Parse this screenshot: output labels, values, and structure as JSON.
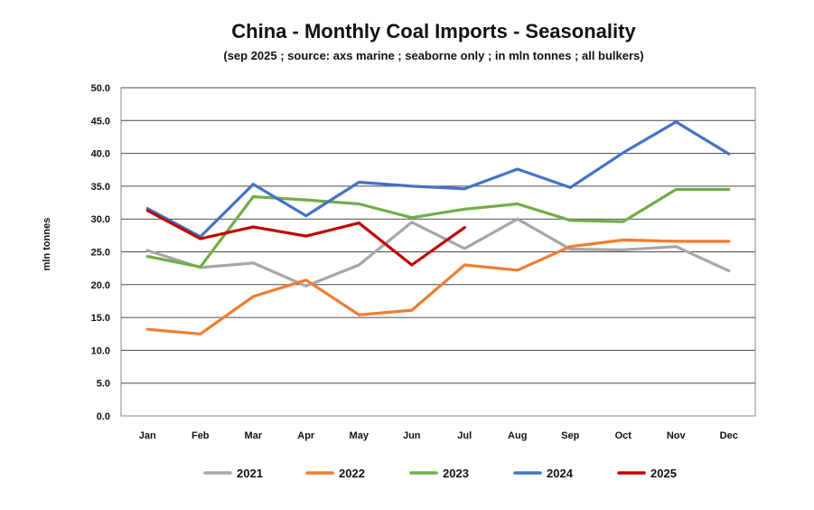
{
  "chart_data": {
    "type": "line",
    "title": "China - Monthly Coal Imports - Seasonality",
    "subtitle": "(sep 2025 ; source: axs marine ; seaborne only ; in mln tonnes ; all bulkers)",
    "xlabel": "",
    "ylabel": "mln tonnes",
    "categories": [
      "Jan",
      "Feb",
      "Mar",
      "Apr",
      "May",
      "Jun",
      "Jul",
      "Aug",
      "Sep",
      "Oct",
      "Nov",
      "Dec"
    ],
    "ylim": [
      0,
      50
    ],
    "yticks": [
      "0.0",
      "5.0",
      "10.0",
      "15.0",
      "20.0",
      "25.0",
      "30.0",
      "35.0",
      "40.0",
      "45.0",
      "50.0"
    ],
    "grid": true,
    "legend_position": "bottom",
    "series": [
      {
        "name": "2021",
        "color": "#a6a6a6",
        "values": [
          25.2,
          22.6,
          23.3,
          19.8,
          23.0,
          29.5,
          25.5,
          30.0,
          25.4,
          25.3,
          25.8,
          22.1
        ]
      },
      {
        "name": "2022",
        "color": "#ed7d31",
        "values": [
          13.2,
          12.5,
          18.2,
          20.7,
          15.4,
          16.1,
          23.0,
          22.2,
          25.8,
          26.8,
          26.6,
          26.6
        ]
      },
      {
        "name": "2023",
        "color": "#70ad47",
        "values": [
          24.3,
          22.7,
          33.4,
          32.9,
          32.3,
          30.2,
          31.5,
          32.3,
          29.8,
          29.6,
          34.5,
          34.5
        ]
      },
      {
        "name": "2024",
        "color": "#4472c4",
        "values": [
          31.6,
          27.3,
          35.3,
          30.5,
          35.6,
          35.0,
          34.6,
          37.6,
          34.8,
          40.1,
          44.8,
          39.9
        ]
      },
      {
        "name": "2025",
        "color": "#c00000",
        "values": [
          31.3,
          27.0,
          28.8,
          27.4,
          29.4,
          23.0,
          28.7,
          null,
          null,
          null,
          null,
          null
        ]
      }
    ]
  }
}
